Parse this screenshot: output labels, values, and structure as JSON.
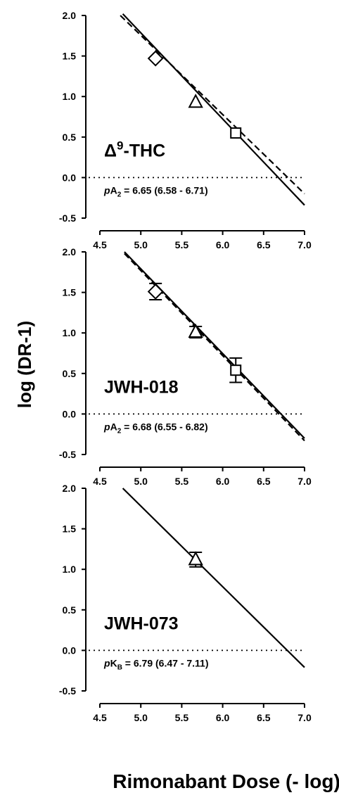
{
  "chart_data": [
    {
      "type": "line",
      "panel_label": "-THC",
      "panel_label_prefix": "Δ",
      "panel_label_sup": "9",
      "annotation": {
        "p": "p",
        "sym": "A",
        "sub": "2",
        "rest": " = 6.65 (6.58 - 6.71)"
      },
      "xlim": [
        4.5,
        7.0
      ],
      "ylim": [
        -0.5,
        2.0
      ],
      "x_ticks": [
        "4.5",
        "5.0",
        "5.5",
        "6.0",
        "6.5",
        "7.0"
      ],
      "y_ticks": [
        "2.0",
        "1.5",
        "1.0",
        "0.5",
        "0.0",
        "-0.5"
      ],
      "reference_line": {
        "y": 0.0,
        "style": "dotted"
      },
      "fit_lines": [
        {
          "style": "solid",
          "x": [
            4.78,
            7.0
          ],
          "y": [
            2.02,
            -0.34
          ]
        },
        {
          "style": "dashed",
          "x": [
            4.75,
            7.0
          ],
          "y": [
            2.0,
            -0.2
          ]
        }
      ],
      "points": [
        {
          "marker": "diamond",
          "x": 5.18,
          "y": 1.47
        },
        {
          "marker": "triangle",
          "x": 5.67,
          "y": 0.93
        },
        {
          "marker": "square",
          "x": 6.16,
          "y": 0.55
        }
      ]
    },
    {
      "type": "line",
      "panel_label": "JWH-018",
      "annotation": {
        "p": "p",
        "sym": "A",
        "sub": "2",
        "rest": " = 6.68 (6.55 - 6.82)"
      },
      "xlim": [
        4.5,
        7.0
      ],
      "ylim": [
        -0.5,
        2.0
      ],
      "x_ticks": [
        "4.5",
        "5.0",
        "5.5",
        "6.0",
        "6.5",
        "7.0"
      ],
      "y_ticks": [
        "2.0",
        "1.5",
        "1.0",
        "0.5",
        "0.0",
        "-0.5"
      ],
      "reference_line": {
        "y": 0.0,
        "style": "dotted"
      },
      "fit_lines": [
        {
          "style": "solid",
          "x": [
            4.8,
            7.0
          ],
          "y": [
            2.0,
            -0.3
          ]
        },
        {
          "style": "dashed",
          "x": [
            4.8,
            7.0
          ],
          "y": [
            1.98,
            -0.33
          ]
        }
      ],
      "points": [
        {
          "marker": "diamond",
          "x": 5.18,
          "y": 1.51,
          "err": 0.1
        },
        {
          "marker": "triangle",
          "x": 5.67,
          "y": 1.01,
          "err": 0.07
        },
        {
          "marker": "square",
          "x": 6.16,
          "y": 0.54,
          "err": 0.15
        }
      ]
    },
    {
      "type": "line",
      "panel_label": "JWH-073",
      "annotation": {
        "p": "p",
        "sym": "K",
        "sub": "B",
        "rest": " = 6.79 (6.47 - 7.11)"
      },
      "xlim": [
        4.5,
        7.0
      ],
      "ylim": [
        -0.5,
        2.0
      ],
      "x_ticks": [
        "4.5",
        "5.0",
        "5.5",
        "6.0",
        "6.5",
        "7.0"
      ],
      "y_ticks": [
        "2.0",
        "1.5",
        "1.0",
        "0.5",
        "0.0",
        "-0.5"
      ],
      "reference_line": {
        "y": 0.0,
        "style": "dotted"
      },
      "fit_lines": [
        {
          "style": "solid",
          "x": [
            4.78,
            7.0
          ],
          "y": [
            2.0,
            -0.21
          ]
        }
      ],
      "points": [
        {
          "marker": "triangle",
          "x": 5.67,
          "y": 1.12,
          "err": 0.09
        }
      ]
    }
  ],
  "ylabel": "log (DR-1)",
  "xlabel": "Rimonabant Dose (- log)"
}
